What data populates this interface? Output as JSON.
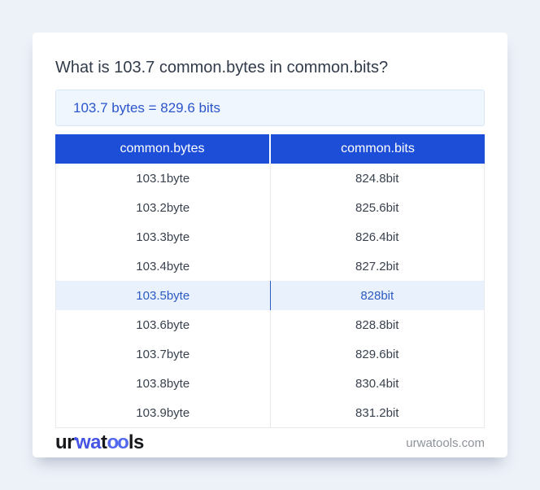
{
  "header": {
    "title": "What is 103.7 common.bytes in common.bits?"
  },
  "answer": {
    "text": "103.7 bytes = 829.6 bits"
  },
  "table": {
    "columns": [
      "common.bytes",
      "common.bits"
    ],
    "rows": [
      {
        "bytes": "103.1byte",
        "bits": "824.8bit",
        "highlighted": false
      },
      {
        "bytes": "103.2byte",
        "bits": "825.6bit",
        "highlighted": false
      },
      {
        "bytes": "103.3byte",
        "bits": "826.4bit",
        "highlighted": false
      },
      {
        "bytes": "103.4byte",
        "bits": "827.2bit",
        "highlighted": false
      },
      {
        "bytes": "103.5byte",
        "bits": "828bit",
        "highlighted": true
      },
      {
        "bytes": "103.6byte",
        "bits": "828.8bit",
        "highlighted": false
      },
      {
        "bytes": "103.7byte",
        "bits": "829.6bit",
        "highlighted": false
      },
      {
        "bytes": "103.8byte",
        "bits": "830.4bit",
        "highlighted": false
      },
      {
        "bytes": "103.9byte",
        "bits": "831.2bit",
        "highlighted": false
      }
    ]
  },
  "footer": {
    "logo_parts": {
      "p1": "ur",
      "p2": "wa",
      "p3": "t",
      "p4": "oo",
      "p5": "ls"
    },
    "domain": "urwatools.com"
  },
  "colors": {
    "page_bg": "#edf1f8",
    "card_bg": "#ffffff",
    "table_header_bg": "#1d4ed8",
    "answer_bg": "#f0f6fe",
    "answer_text": "#2a55cb",
    "highlight_row_bg": "#e9f2fc",
    "highlight_row_text": "#2c5ac2",
    "row_text": "#39424e",
    "title_text": "#313b49",
    "domain_text": "#8e939c",
    "logo_blue": "#4554e3"
  }
}
